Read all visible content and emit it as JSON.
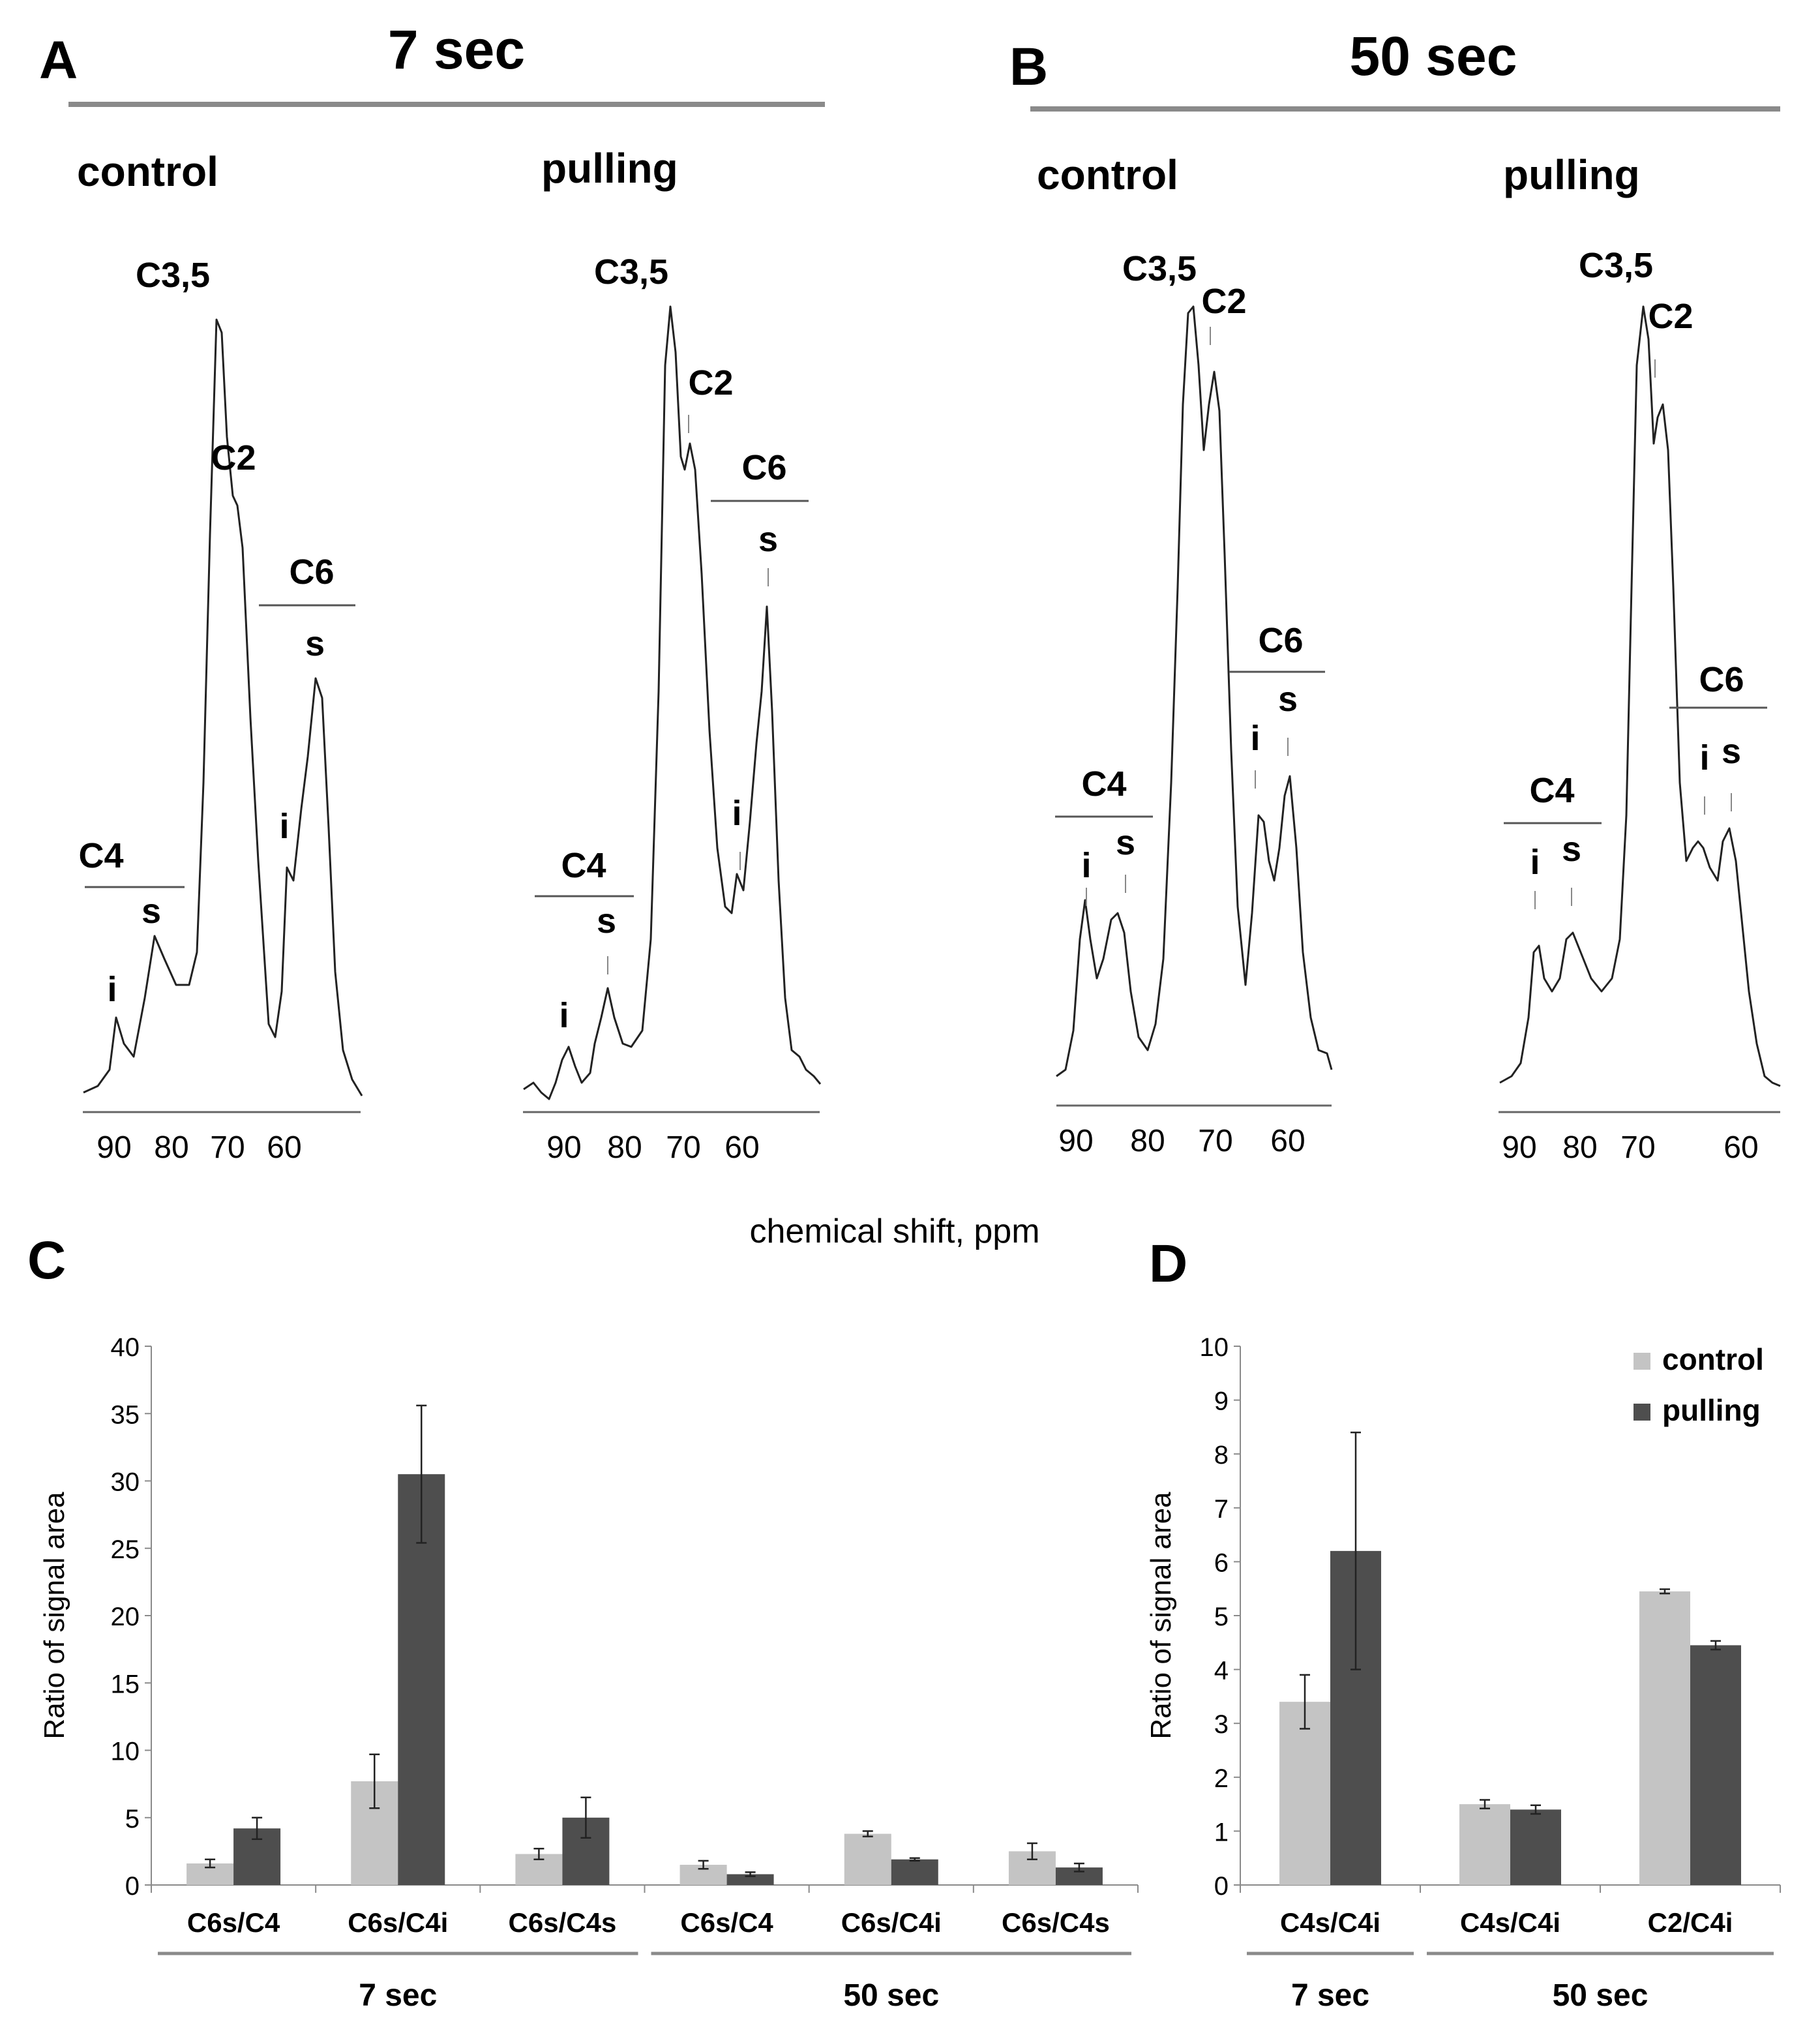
{
  "panels": {
    "A": {
      "letter": "A",
      "title": "7 sec",
      "control_label": "control",
      "pulling_label": "pulling"
    },
    "B": {
      "letter": "B",
      "title": "50 sec",
      "control_label": "control",
      "pulling_label": "pulling"
    },
    "C": {
      "letter": "C"
    },
    "D": {
      "letter": "D"
    }
  },
  "spectra_axis": {
    "xlabel": "chemical shift, ppm",
    "ticks": [
      90,
      80,
      70,
      60
    ]
  },
  "spectra_labels": {
    "C35": "C3,5",
    "C2": "C2",
    "C4": "C4",
    "C6": "C6",
    "i": "i",
    "s": "s",
    "tick": "I"
  },
  "chart_data": [
    {
      "type": "bar",
      "panel": "C",
      "ylabel": "Ratio of signal area",
      "ylim": [
        0,
        40
      ],
      "yticks": [
        0,
        5,
        10,
        15,
        20,
        25,
        30,
        35,
        40
      ],
      "categories": [
        "C6s/C4",
        "C6s/C4i",
        "C6s/C4s",
        "C6s/C4",
        "C6s/C4i",
        "C6s/C4s"
      ],
      "groups": [
        {
          "label": "7 sec",
          "count": 3
        },
        {
          "label": "50 sec",
          "count": 3
        }
      ],
      "series": [
        {
          "name": "control",
          "color": "#c4c4c4",
          "values": [
            1.6,
            7.7,
            2.3,
            1.5,
            3.8,
            2.5
          ],
          "errors": [
            0.3,
            2.0,
            0.4,
            0.3,
            0.2,
            0.6
          ]
        },
        {
          "name": "pulling",
          "color": "#4e4e4e",
          "values": [
            4.2,
            30.5,
            5.0,
            0.8,
            1.9,
            1.3
          ],
          "errors": [
            0.8,
            5.1,
            1.5,
            0.15,
            0.1,
            0.3
          ]
        }
      ]
    },
    {
      "type": "bar",
      "panel": "D",
      "ylabel": "Ratio of signal area",
      "ylim": [
        0,
        10
      ],
      "yticks": [
        0,
        1,
        2,
        3,
        4,
        5,
        6,
        7,
        8,
        9,
        10
      ],
      "categories": [
        "C4s/C4i",
        "C4s/C4i",
        "C2/C4i"
      ],
      "groups": [
        {
          "label": "7 sec",
          "count": 1
        },
        {
          "label": "50 sec",
          "count": 2
        }
      ],
      "legend": {
        "position": "top-right"
      },
      "series": [
        {
          "name": "control",
          "color": "#c4c4c4",
          "values": [
            3.4,
            1.5,
            5.45
          ],
          "errors": [
            0.5,
            0.08,
            0.04
          ]
        },
        {
          "name": "pulling",
          "color": "#4e4e4e",
          "values": [
            6.2,
            1.4,
            4.45
          ],
          "errors": [
            2.2,
            0.08,
            0.08
          ]
        }
      ]
    }
  ]
}
